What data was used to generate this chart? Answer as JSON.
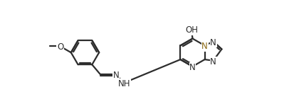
{
  "bg_color": "#ffffff",
  "bond_color": "#2d2d2d",
  "n_color": "#8B6914",
  "line_width": 1.6,
  "font_size": 8.5,
  "fig_width": 4.13,
  "fig_height": 1.47,
  "dpi": 100,
  "xlim": [
    0,
    10
  ],
  "ylim": [
    0,
    3.56
  ]
}
